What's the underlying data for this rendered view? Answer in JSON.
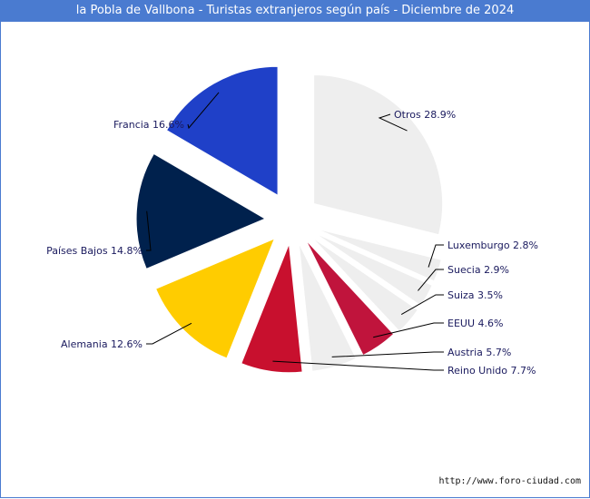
{
  "chart_data": {
    "type": "pie",
    "title": "la Pobla de Vallbona - Turistas extranjeros según país - Diciembre de 2024",
    "slices": [
      {
        "name": "Otros",
        "value": 28.9,
        "label": "Otros 28.9%",
        "color": "#eeeeee"
      },
      {
        "name": "Luxemburgo",
        "value": 2.8,
        "label": "Luxemburgo 2.8%",
        "color": "#eeeeee"
      },
      {
        "name": "Suecia",
        "value": 2.9,
        "label": "Suecia 2.9%",
        "color": "#eeeeee"
      },
      {
        "name": "Suiza",
        "value": 3.5,
        "label": "Suiza 3.5%",
        "color": "#eeeeee"
      },
      {
        "name": "EEUU",
        "value": 4.6,
        "label": "EEUU 4.6%",
        "color": "#c0143c"
      },
      {
        "name": "Austria",
        "value": 5.7,
        "label": "Austria 5.7%",
        "color": "#eeeeee"
      },
      {
        "name": "Reino Unido",
        "value": 7.7,
        "label": "Reino Unido 7.7%",
        "color": "#c8102e"
      },
      {
        "name": "Alemania",
        "value": 12.6,
        "label": "Alemania 12.6%",
        "color": "#ffcc00"
      },
      {
        "name": "Países Bajos",
        "value": 14.8,
        "label": "Países Bajos 14.8%",
        "color": "#00214d"
      },
      {
        "name": "Francia",
        "value": 16.6,
        "label": "Francia 16.6%",
        "color": "#1f40c8"
      }
    ]
  },
  "source": "http://www.foro-ciudad.com"
}
